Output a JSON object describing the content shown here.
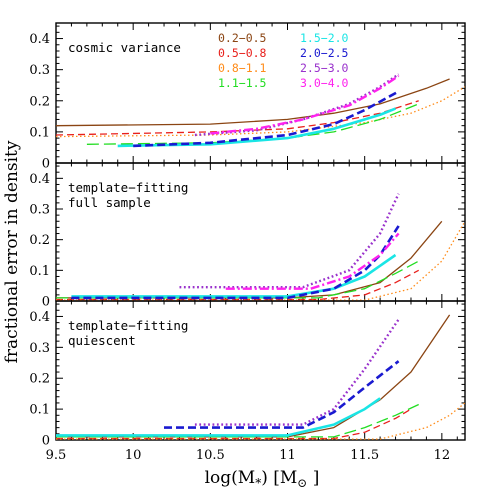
{
  "chart_data": {
    "type": "line",
    "xlabel": "log(M",
    "xlabel_sub": "*",
    "xlabel_tail": ") [M",
    "xlabel_sun": "⊙",
    "xlabel_close": "]",
    "ylabel": "fractional error in density",
    "xlim": [
      9.5,
      12.15
    ],
    "ylim": [
      0,
      0.45
    ],
    "x_ticks": [
      "9.5",
      "10",
      "10.5",
      "11",
      "11.5",
      "12"
    ],
    "y_ticks": [
      "0",
      "0.1",
      "0.2",
      "0.3",
      "0.4"
    ],
    "grid": false,
    "legend_placement": "top-right of top panel",
    "legend": [
      {
        "label": "0.2−0.5",
        "color": "#8B4513"
      },
      {
        "label": "0.5−0.8",
        "color": "#E8201C"
      },
      {
        "label": "0.8−1.1",
        "color": "#FF8C1A"
      },
      {
        "label": "1.1−1.5",
        "color": "#22DD22"
      },
      {
        "label": "1.5−2.0",
        "color": "#1AE5E5"
      },
      {
        "label": "2.0−2.5",
        "color": "#1A1AD0"
      },
      {
        "label": "2.5−3.0",
        "color": "#9932CC"
      },
      {
        "label": "3.0−4.0",
        "color": "#FF22EE"
      }
    ],
    "panels": [
      {
        "label_lines": [
          "cosmic variance"
        ],
        "series": [
          {
            "legend_index": 0,
            "dash": "solid",
            "x": [
              9.5,
              10.5,
              11.0,
              11.3,
              11.6,
              11.9,
              12.05
            ],
            "y": [
              0.12,
              0.125,
              0.14,
              0.16,
              0.19,
              0.24,
              0.27
            ]
          },
          {
            "legend_index": 1,
            "dash": "dashed",
            "x": [
              9.5,
              10.5,
              11.0,
              11.3,
              11.6,
              11.85
            ],
            "y": [
              0.09,
              0.1,
              0.11,
              0.13,
              0.16,
              0.2
            ]
          },
          {
            "legend_index": 2,
            "dash": "dotted",
            "x": [
              9.5,
              10.5,
              11.0,
              11.5,
              11.8,
              12.0,
              12.15
            ],
            "y": [
              0.085,
              0.09,
              0.1,
              0.13,
              0.16,
              0.2,
              0.245
            ]
          },
          {
            "legend_index": 3,
            "dash": "longdash",
            "x": [
              9.7,
              10.5,
              11.0,
              11.3,
              11.6,
              11.85
            ],
            "y": [
              0.06,
              0.065,
              0.08,
              0.1,
              0.14,
              0.19
            ]
          },
          {
            "legend_index": 4,
            "dash": "solid-thick",
            "x": [
              9.9,
              10.5,
              11.0,
              11.3,
              11.6,
              11.7
            ],
            "y": [
              0.055,
              0.06,
              0.08,
              0.11,
              0.155,
              0.175
            ]
          },
          {
            "legend_index": 5,
            "dash": "dashed-thick",
            "x": [
              10.0,
              10.5,
              11.0,
              11.3,
              11.5,
              11.72
            ],
            "y": [
              0.055,
              0.065,
              0.09,
              0.125,
              0.17,
              0.23
            ]
          },
          {
            "legend_index": 6,
            "dash": "dotted-thick",
            "x": [
              10.4,
              10.8,
              11.1,
              11.4,
              11.6,
              11.72
            ],
            "y": [
              0.09,
              0.105,
              0.14,
              0.19,
              0.245,
              0.285
            ]
          },
          {
            "legend_index": 7,
            "dash": "dashdot-thick",
            "x": [
              10.5,
              10.8,
              11.1,
              11.4,
              11.6,
              11.72
            ],
            "y": [
              0.095,
              0.11,
              0.14,
              0.185,
              0.24,
              0.28
            ]
          }
        ]
      },
      {
        "label_lines": [
          "template−fitting",
          "full sample"
        ],
        "series": [
          {
            "legend_index": 0,
            "dash": "solid",
            "x": [
              9.5,
              11.0,
              11.3,
              11.6,
              11.8,
              12.0
            ],
            "y": [
              0.01,
              0.01,
              0.02,
              0.06,
              0.14,
              0.26
            ]
          },
          {
            "legend_index": 1,
            "dash": "dashed",
            "x": [
              9.5,
              11.2,
              11.5,
              11.7,
              11.85
            ],
            "y": [
              0.005,
              0.005,
              0.02,
              0.06,
              0.1
            ]
          },
          {
            "legend_index": 2,
            "dash": "dotted",
            "x": [
              9.5,
              11.5,
              11.8,
              12.0,
              12.15
            ],
            "y": [
              0.003,
              0.003,
              0.04,
              0.13,
              0.26
            ]
          },
          {
            "legend_index": 3,
            "dash": "longdash",
            "x": [
              9.5,
              11.2,
              11.5,
              11.7,
              11.85
            ],
            "y": [
              0.01,
              0.01,
              0.04,
              0.09,
              0.13
            ]
          },
          {
            "legend_index": 4,
            "dash": "solid-thick",
            "x": [
              9.6,
              11.0,
              11.3,
              11.5,
              11.7
            ],
            "y": [
              0.015,
              0.015,
              0.04,
              0.08,
              0.15
            ]
          },
          {
            "legend_index": 5,
            "dash": "dashed-thick",
            "x": [
              9.6,
              11.0,
              11.3,
              11.5,
              11.6,
              11.72
            ],
            "y": [
              0.01,
              0.01,
              0.04,
              0.1,
              0.15,
              0.245
            ]
          },
          {
            "legend_index": 6,
            "dash": "dotted-thick",
            "x": [
              10.3,
              11.1,
              11.4,
              11.6,
              11.72
            ],
            "y": [
              0.045,
              0.045,
              0.1,
              0.22,
              0.35
            ]
          },
          {
            "legend_index": 7,
            "dash": "dashdot-thick",
            "x": [
              10.6,
              11.15,
              11.4,
              11.6,
              11.72
            ],
            "y": [
              0.04,
              0.04,
              0.08,
              0.15,
              0.22
            ]
          }
        ]
      },
      {
        "label_lines": [
          "template−fitting",
          "quiescent"
        ],
        "series": [
          {
            "legend_index": 0,
            "dash": "solid",
            "x": [
              9.5,
              11.0,
              11.3,
              11.6,
              11.8,
              12.05
            ],
            "y": [
              0.01,
              0.01,
              0.04,
              0.13,
              0.22,
              0.405
            ]
          },
          {
            "legend_index": 1,
            "dash": "dashed",
            "x": [
              9.5,
              11.3,
              11.5,
              11.7,
              11.8
            ],
            "y": [
              0.005,
              0.005,
              0.025,
              0.07,
              0.1
            ]
          },
          {
            "legend_index": 2,
            "dash": "dotted",
            "x": [
              9.5,
              11.6,
              11.9,
              12.05,
              12.15
            ],
            "y": [
              0.003,
              0.003,
              0.04,
              0.08,
              0.12
            ]
          },
          {
            "legend_index": 3,
            "dash": "longdash",
            "x": [
              9.5,
              11.3,
              11.5,
              11.7,
              11.85
            ],
            "y": [
              0.01,
              0.01,
              0.04,
              0.08,
              0.115
            ]
          },
          {
            "legend_index": 4,
            "dash": "solid-thick",
            "x": [
              9.5,
              11.0,
              11.3,
              11.5,
              11.6
            ],
            "y": [
              0.015,
              0.015,
              0.05,
              0.1,
              0.135
            ]
          },
          {
            "legend_index": 5,
            "dash": "dashed-thick",
            "x": [
              10.2,
              11.1,
              11.3,
              11.5,
              11.72
            ],
            "y": [
              0.04,
              0.04,
              0.09,
              0.17,
              0.255
            ]
          },
          {
            "legend_index": 6,
            "dash": "dotted-thick",
            "x": [
              10.4,
              11.1,
              11.3,
              11.5,
              11.72
            ],
            "y": [
              0.05,
              0.05,
              0.1,
              0.23,
              0.39
            ]
          }
        ]
      }
    ]
  }
}
